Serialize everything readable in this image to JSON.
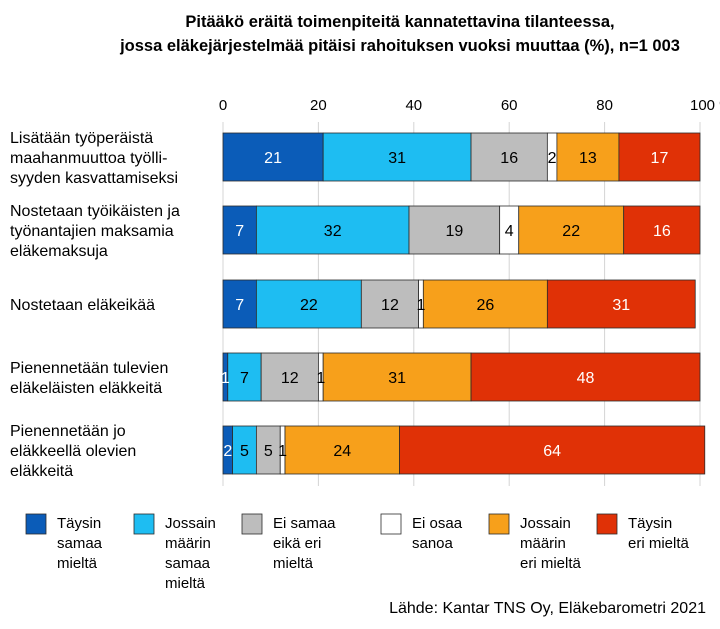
{
  "chart_data": {
    "type": "bar",
    "orientation": "horizontal",
    "stacked": true,
    "title": "Pitääkö eräitä toimenpiteitä kannatettavina tilanteessa,\njossa eläkejärjestelmää pitäisi rahoituksen vuoksi muuttaa (%), n=1 003",
    "xlim": [
      0,
      100
    ],
    "x_ticks": [
      "0",
      "20",
      "40",
      "60",
      "80",
      "100 %"
    ],
    "x_tick_values": [
      0,
      20,
      40,
      60,
      80,
      100
    ],
    "x_axis_position": "top",
    "grid": "vertical",
    "legend_position": "bottom",
    "categories": [
      "Lisätään työperäistä\nmaahanmuuttoa työlli-\nsyyden kasvattamiseksi",
      "Nostetaan työikäisten ja\ntyönantajien maksamia\neläkemaksuja",
      "Nostetaan eläkeikää",
      "Pienennetään tulevien\neläkeläisten eläkkeitä",
      "Pienennetään jo\neläkkeellä olevien\neläkkeitä"
    ],
    "series": [
      {
        "name": "Täysin samaa mieltä",
        "legend_label": "Täysin\nsamaa\nmieltä",
        "color": "#0b5cb8",
        "values": [
          21,
          7,
          7,
          1,
          2
        ]
      },
      {
        "name": "Jossain määrin samaa mieltä",
        "legend_label": "Jossain\nmäärin\nsamaa\nmieltä",
        "color": "#1ebdf2",
        "values": [
          31,
          32,
          22,
          7,
          5
        ]
      },
      {
        "name": "Ei samaa eikä eri mieltä",
        "legend_label": "Ei samaa\neikä eri\nmieltä",
        "color": "#bdbdbd",
        "values": [
          16,
          19,
          12,
          12,
          5
        ]
      },
      {
        "name": "Ei osaa sanoa",
        "legend_label": "Ei osaa\nsanoa",
        "color": "#ffffff",
        "values": [
          2,
          4,
          1,
          1,
          1
        ]
      },
      {
        "name": "Jossain määrin eri mieltä",
        "legend_label": "Jossain\nmäärin\neri mieltä",
        "color": "#f7a01b",
        "values": [
          13,
          22,
          26,
          31,
          24
        ]
      },
      {
        "name": "Täysin eri mieltä",
        "legend_label": "Täysin\neri mieltä",
        "color": "#e03106",
        "values": [
          17,
          16,
          31,
          48,
          64
        ]
      }
    ],
    "data_labels": true,
    "source": "Lähde: Kantar TNS Oy, Eläkebarometri 2021"
  }
}
